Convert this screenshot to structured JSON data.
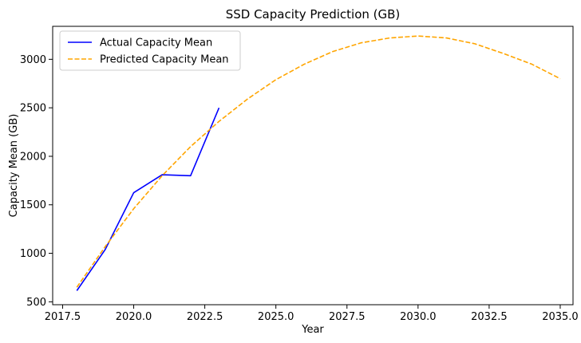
{
  "chart_data": {
    "type": "line",
    "title": "SSD Capacity Prediction (GB)",
    "xlabel": "Year",
    "ylabel": "Capacity Mean (GB)",
    "xlim": [
      2017.15,
      2035.45
    ],
    "ylim": [
      470,
      3340
    ],
    "xticks": [
      2017.5,
      2020.0,
      2022.5,
      2025.0,
      2027.5,
      2030.0,
      2032.5,
      2035.0
    ],
    "xtick_labels": [
      "2017.5",
      "2020.0",
      "2022.5",
      "2025.0",
      "2027.5",
      "2030.0",
      "2032.5",
      "2035.0"
    ],
    "yticks": [
      500,
      1000,
      1500,
      2000,
      2500,
      3000
    ],
    "ytick_labels": [
      "500",
      "1000",
      "1500",
      "2000",
      "2500",
      "3000"
    ],
    "grid": false,
    "legend_position": "top-left",
    "series": [
      {
        "name": "Actual Capacity Mean",
        "color": "#0000ff",
        "style": "solid",
        "x": [
          2018,
          2019,
          2020,
          2021,
          2022,
          2023
        ],
        "y": [
          615,
          1040,
          1625,
          1810,
          1800,
          2500
        ]
      },
      {
        "name": "Predicted Capacity Mean",
        "color": "#ffa500",
        "style": "dashed",
        "x": [
          2018,
          2019,
          2020,
          2021,
          2022,
          2023,
          2024,
          2025,
          2026,
          2027,
          2028,
          2029,
          2030,
          2031,
          2032,
          2033,
          2034,
          2035
        ],
        "y": [
          650,
          1070,
          1460,
          1800,
          2100,
          2360,
          2590,
          2790,
          2950,
          3080,
          3170,
          3220,
          3240,
          3220,
          3160,
          3060,
          2950,
          2800
        ]
      }
    ]
  }
}
